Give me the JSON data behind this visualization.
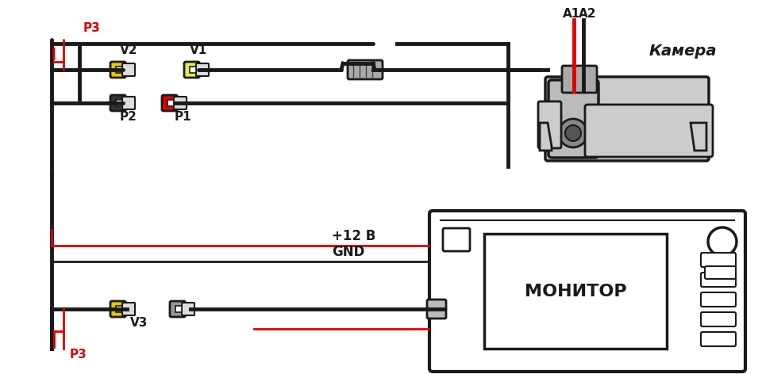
{
  "bg_color": "#ffffff",
  "line_color": "#1a1a1a",
  "red_color": "#e00000",
  "yellow_color": "#e8c800",
  "gray_color": "#aaaaaa",
  "label_p3_top": "P3",
  "label_p3_bot": "P3",
  "label_v2": "V2",
  "label_v1": "V1",
  "label_p2": "P2",
  "label_p1": "P1",
  "label_v3": "V3",
  "label_a1": "A1",
  "label_a2": "A2",
  "label_camera": "Камера",
  "label_12v": "+12 В",
  "label_gnd": "GND",
  "label_monitor": "МОНИТОР"
}
